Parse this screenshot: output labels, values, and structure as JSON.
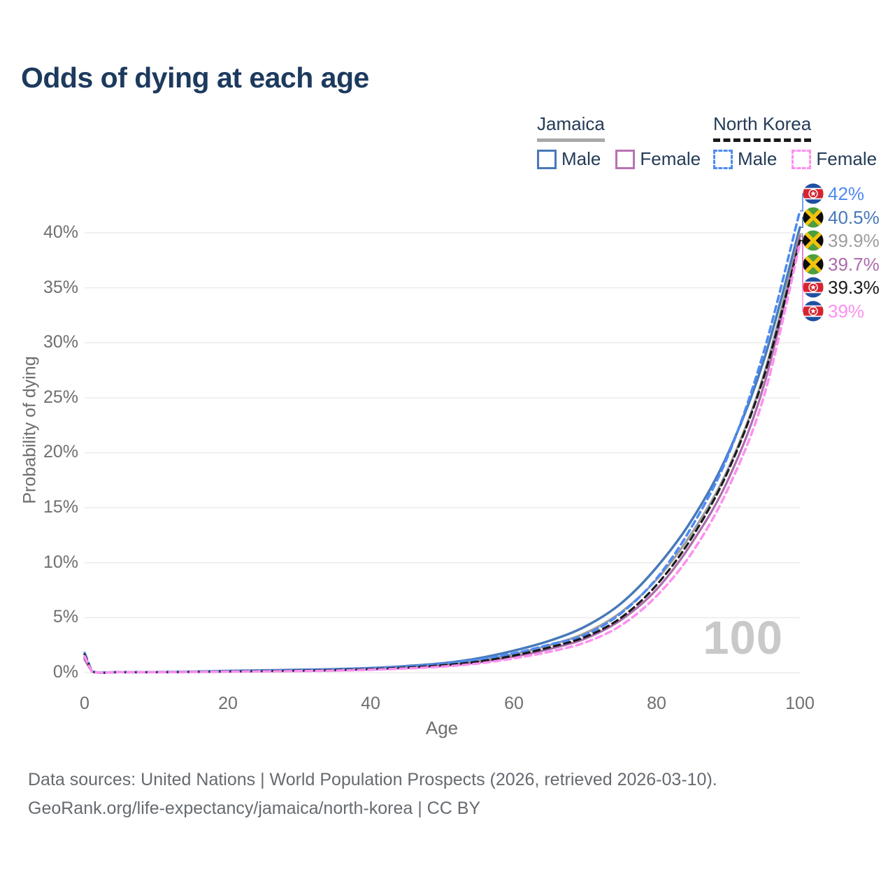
{
  "title": "Odds of dying at each age",
  "legend": {
    "groups": [
      {
        "label": "Jamaica",
        "underline_style": "solid",
        "underline_color": "#a8a8a8",
        "items": [
          {
            "label": "Male",
            "color": "#4779b8",
            "dashed": false
          },
          {
            "label": "Female",
            "color": "#b872b3",
            "dashed": false
          }
        ]
      },
      {
        "label": "North Korea",
        "underline_style": "dashed",
        "underline_color": "#1a1a1a",
        "items": [
          {
            "label": "Male",
            "color": "#4e8af2",
            "dashed": true
          },
          {
            "label": "Female",
            "color": "#fd90f0",
            "dashed": true
          }
        ]
      }
    ]
  },
  "chart_data": {
    "type": "line",
    "title": "Odds of dying at each age",
    "xlabel": "Age",
    "ylabel": "Probability of dying",
    "xlim": [
      0,
      100
    ],
    "ylim_percent": [
      0,
      42
    ],
    "grid": "horizontal",
    "xticks": [
      "0",
      "20",
      "40",
      "60",
      "80",
      "100"
    ],
    "yticks": [
      "0%",
      "5%",
      "10%",
      "15%",
      "20%",
      "25%",
      "30%",
      "35%",
      "40%"
    ],
    "watermark": "100",
    "ages": [
      0,
      1,
      5,
      10,
      15,
      20,
      25,
      30,
      35,
      40,
      45,
      50,
      55,
      60,
      65,
      70,
      75,
      80,
      85,
      90,
      95,
      100
    ],
    "series": [
      {
        "name": "Jamaica Male",
        "country": "jamaica",
        "sex": "male",
        "color": "#4779b8",
        "dashed": false,
        "width": 3.5,
        "end_label": "40.5%",
        "values_percent": [
          1.4,
          0.12,
          0.05,
          0.05,
          0.09,
          0.16,
          0.21,
          0.26,
          0.32,
          0.42,
          0.6,
          0.85,
          1.3,
          2.0,
          2.9,
          4.2,
          6.3,
          9.6,
          14.0,
          20.0,
          28.5,
          40.5
        ]
      },
      {
        "name": "Jamaica (both sexes)",
        "country": "jamaica",
        "sex": "both",
        "color": "#9d9d9d",
        "dashed": false,
        "width": 3.2,
        "end_label": "39.9%",
        "values_percent": [
          1.3,
          0.11,
          0.045,
          0.045,
          0.075,
          0.12,
          0.16,
          0.2,
          0.26,
          0.35,
          0.5,
          0.72,
          1.1,
          1.7,
          2.5,
          3.6,
          5.5,
          8.5,
          12.8,
          18.6,
          27.2,
          39.9
        ]
      },
      {
        "name": "Jamaica Female",
        "country": "jamaica",
        "sex": "female",
        "color": "#ac6cab",
        "dashed": false,
        "width": 3.2,
        "end_label": "39.7%",
        "values_percent": [
          1.2,
          0.1,
          0.04,
          0.04,
          0.06,
          0.09,
          0.12,
          0.15,
          0.2,
          0.29,
          0.42,
          0.6,
          0.92,
          1.45,
          2.15,
          3.1,
          4.8,
          7.6,
          11.9,
          17.6,
          26.2,
          39.7
        ]
      },
      {
        "name": "North Korea Male",
        "country": "north-korea",
        "sex": "male",
        "color": "#4e8af2",
        "dashed": true,
        "width": 3.5,
        "end_label": "42%",
        "values_percent": [
          1.8,
          0.15,
          0.06,
          0.05,
          0.08,
          0.13,
          0.17,
          0.22,
          0.28,
          0.38,
          0.55,
          0.8,
          1.2,
          1.75,
          2.55,
          3.45,
          5.4,
          8.6,
          13.4,
          19.8,
          29.3,
          42.0
        ]
      },
      {
        "name": "North Korea (both sexes)",
        "country": "north-korea",
        "sex": "both",
        "color": "#1a1a1a",
        "dashed": true,
        "width": 3.2,
        "end_label": "39.3%",
        "values_percent": [
          1.65,
          0.13,
          0.05,
          0.045,
          0.07,
          0.11,
          0.14,
          0.18,
          0.23,
          0.32,
          0.46,
          0.67,
          1.0,
          1.55,
          2.3,
          3.25,
          5.0,
          8.0,
          12.4,
          18.4,
          27.0,
          39.3
        ]
      },
      {
        "name": "North Korea Female",
        "country": "north-korea",
        "sex": "female",
        "color": "#fd90f0",
        "dashed": true,
        "width": 3.5,
        "end_label": "39%",
        "values_percent": [
          1.5,
          0.12,
          0.05,
          0.04,
          0.06,
          0.09,
          0.11,
          0.14,
          0.18,
          0.26,
          0.38,
          0.55,
          0.83,
          1.3,
          1.9,
          2.75,
          4.3,
          7.0,
          11.0,
          16.8,
          25.2,
          39.0
        ]
      }
    ]
  },
  "end_labels": [
    {
      "flag": "north-korea",
      "value": "42%",
      "color": "#4e8af2"
    },
    {
      "flag": "jamaica",
      "value": "40.5%",
      "color": "#4779b8"
    },
    {
      "flag": "jamaica",
      "value": "39.9%",
      "color": "#9d9d9d"
    },
    {
      "flag": "jamaica",
      "value": "39.7%",
      "color": "#ac6cab"
    },
    {
      "flag": "north-korea",
      "value": "39.3%",
      "color": "#1a1a1a"
    },
    {
      "flag": "north-korea",
      "value": "39%",
      "color": "#fd90f0"
    }
  ],
  "footer": {
    "line1": "Data sources: United Nations | World Population Prospects (2026, retrieved 2026-03-10).",
    "line2": "GeoRank.org/life-expectancy/jamaica/north-korea | CC BY"
  }
}
